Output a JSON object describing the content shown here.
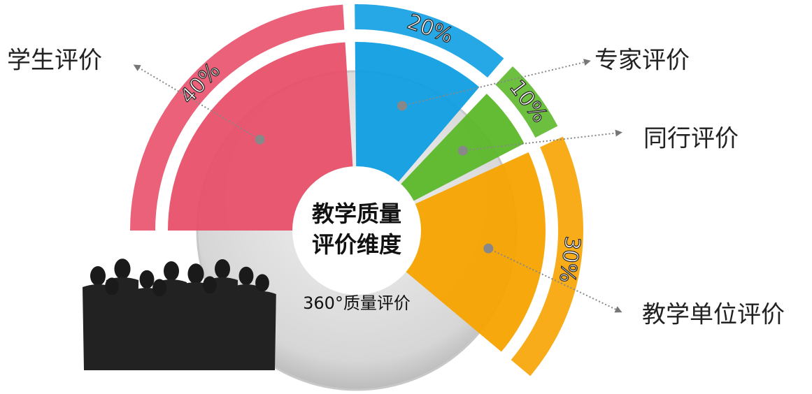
{
  "chart_data": {
    "type": "pie",
    "center_title_lines": [
      "教学质量",
      "评价维度"
    ],
    "center_subtitle": "360°质量评价",
    "categories": [
      "学生评价",
      "专家评价",
      "同行评价",
      "教学单位评价"
    ],
    "values": [
      40,
      20,
      10,
      30
    ],
    "value_labels": [
      "40%",
      "20%",
      "10%",
      "30%"
    ],
    "colors": [
      "#e8506a",
      "#0f9ee3",
      "#5cb82a",
      "#f7a300"
    ]
  }
}
